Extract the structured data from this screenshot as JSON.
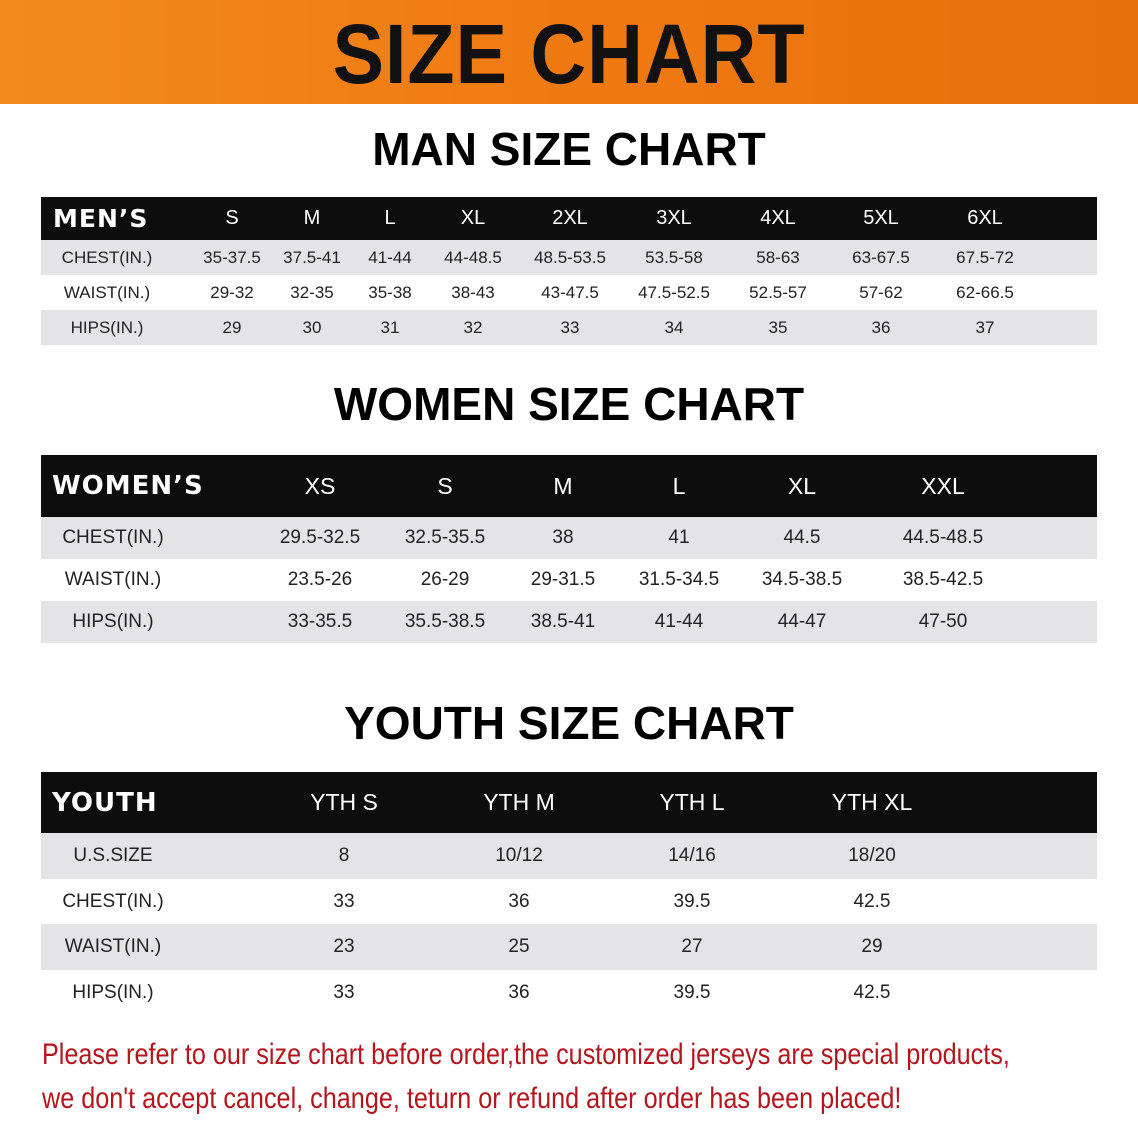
{
  "banner_title": "SIZE CHART",
  "men": {
    "title": "MAN SIZE CHART",
    "corner": "MEN’S",
    "sizes": [
      "S",
      "M",
      "L",
      "XL",
      "2XL",
      "3XL",
      "4XL",
      "5XL",
      "6XL"
    ],
    "rows": [
      {
        "label": "CHEST(IN.)",
        "values": [
          "35-37.5",
          "37.5-41",
          "41-44",
          "44-48.5",
          "48.5-53.5",
          "53.5-58",
          "58-63",
          "63-67.5",
          "67.5-72"
        ]
      },
      {
        "label": "WAIST(IN.)",
        "values": [
          "29-32",
          "32-35",
          "35-38",
          "38-43",
          "43-47.5",
          "47.5-52.5",
          "52.5-57",
          "57-62",
          "62-66.5"
        ]
      },
      {
        "label": "HIPS(IN.)",
        "values": [
          "29",
          "30",
          "31",
          "32",
          "33",
          "34",
          "35",
          "36",
          "37"
        ]
      }
    ]
  },
  "women": {
    "title": "WOMEN SIZE CHART",
    "corner": "WOMEN’S",
    "sizes": [
      "XS",
      "S",
      "M",
      "L",
      "XL",
      "XXL"
    ],
    "rows": [
      {
        "label": "CHEST(IN.)",
        "values": [
          "29.5-32.5",
          "32.5-35.5",
          "38",
          "41",
          "44.5",
          "44.5-48.5"
        ]
      },
      {
        "label": "WAIST(IN.)",
        "values": [
          "23.5-26",
          "26-29",
          "29-31.5",
          "31.5-34.5",
          "34.5-38.5",
          "38.5-42.5"
        ]
      },
      {
        "label": "HIPS(IN.)",
        "values": [
          "33-35.5",
          "35.5-38.5",
          "38.5-41",
          "41-44",
          "44-47",
          "47-50"
        ]
      }
    ]
  },
  "youth": {
    "title": "YOUTH SIZE CHART",
    "corner": "YOUTH",
    "sizes": [
      "YTH S",
      "YTH M",
      "YTH L",
      "YTH XL"
    ],
    "rows": [
      {
        "label": "U.S.SIZE",
        "values": [
          "8",
          "10/12",
          "14/16",
          "18/20"
        ]
      },
      {
        "label": "CHEST(IN.)",
        "values": [
          "33",
          "36",
          "39.5",
          "42.5"
        ]
      },
      {
        "label": "WAIST(IN.)",
        "values": [
          "23",
          "25",
          "27",
          "29"
        ]
      },
      {
        "label": "HIPS(IN.)",
        "values": [
          "33",
          "36",
          "39.5",
          "42.5"
        ]
      }
    ]
  },
  "notice": {
    "line1": "Please refer to our size chart before order,the customized jerseys are special products,",
    "line2": "we don't accept cancel, change, teturn or refund after order has been placed!"
  },
  "colors": {
    "banner": "#ef7a12",
    "header": "#0d0d0d",
    "stripe": "#e4e4e6",
    "notice": "#b3161c"
  }
}
